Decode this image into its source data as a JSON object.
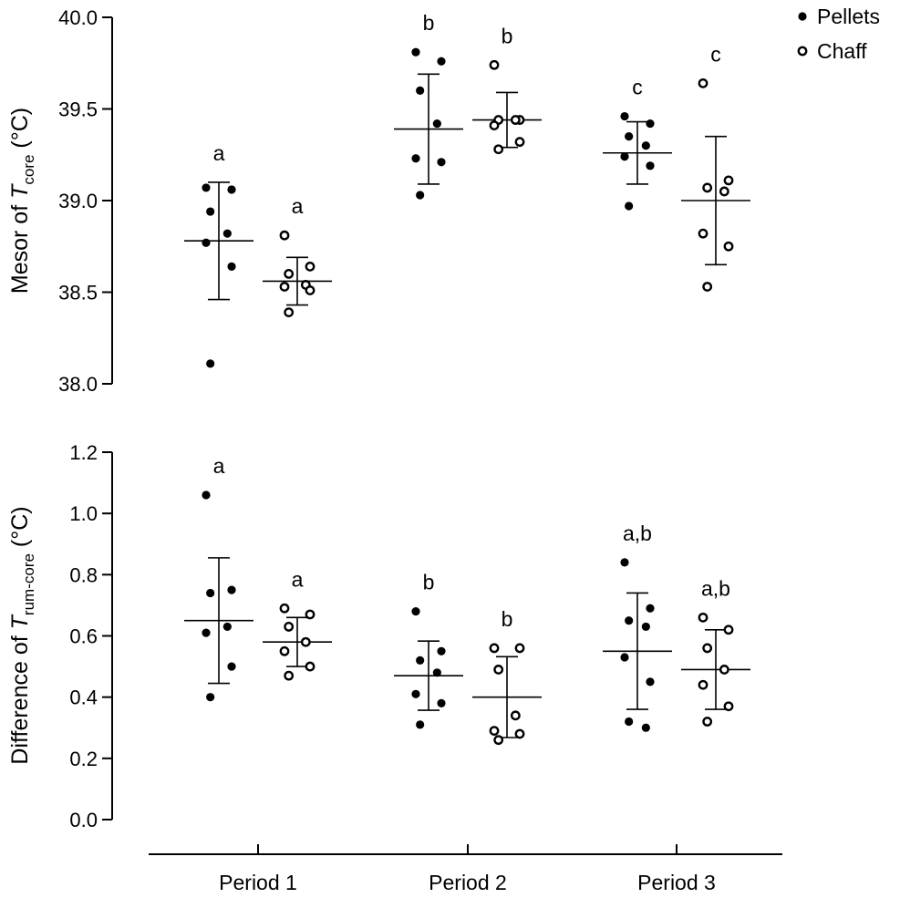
{
  "chart_data": [
    {
      "type": "scatter",
      "panel": "top",
      "ylabel_prefix": "Mesor of ",
      "ylabel_var": "T",
      "ylabel_sub": "core",
      "ylabel_suffix": " (°C)",
      "ylim": [
        38.0,
        40.0
      ],
      "yticks": [
        "38.0",
        "38.5",
        "39.0",
        "39.5",
        "40.0"
      ],
      "categories": [
        "Period 1",
        "Period 2",
        "Period 3"
      ],
      "series": [
        {
          "name": "Pellets",
          "marker": "filled",
          "groups": [
            {
              "points": [
                39.07,
                39.06,
                38.94,
                38.82,
                38.77,
                38.64,
                38.11
              ],
              "mean": 38.78,
              "sd": 0.32,
              "letter": "a"
            },
            {
              "points": [
                39.81,
                39.76,
                39.6,
                39.42,
                39.23,
                39.21,
                39.03
              ],
              "mean": 39.39,
              "sd": 0.3,
              "letter": "b"
            },
            {
              "points": [
                39.46,
                39.42,
                39.35,
                39.3,
                39.24,
                39.19,
                38.97
              ],
              "mean": 39.26,
              "sd": 0.17,
              "letter": "c"
            }
          ]
        },
        {
          "name": "Chaff",
          "marker": "open",
          "groups": [
            {
              "points": [
                38.81,
                38.64,
                38.6,
                38.54,
                38.53,
                38.51,
                38.39
              ],
              "mean": 38.56,
              "sd": 0.13,
              "letter": "a"
            },
            {
              "points": [
                39.74,
                39.44,
                39.44,
                39.44,
                39.41,
                39.32,
                39.28
              ],
              "mean": 39.44,
              "sd": 0.15,
              "letter": "b"
            },
            {
              "points": [
                39.64,
                39.11,
                39.07,
                39.05,
                38.82,
                38.75,
                38.53
              ],
              "mean": 39.0,
              "sd": 0.35,
              "letter": "c"
            }
          ]
        }
      ]
    },
    {
      "type": "scatter",
      "panel": "bottom",
      "ylabel_prefix": "Difference of ",
      "ylabel_var": "T",
      "ylabel_sub": "rum-core",
      "ylabel_suffix": " (°C)",
      "ylim": [
        0.0,
        1.2
      ],
      "yticks": [
        "0.0",
        "0.2",
        "0.4",
        "0.6",
        "0.8",
        "1.0",
        "1.2"
      ],
      "categories": [
        "Period 1",
        "Period 2",
        "Period 3"
      ],
      "series": [
        {
          "name": "Pellets",
          "marker": "filled",
          "groups": [
            {
              "points": [
                1.06,
                0.75,
                0.74,
                0.63,
                0.61,
                0.5,
                0.4
              ],
              "mean": 0.65,
              "sd": 0.205,
              "letter": "a"
            },
            {
              "points": [
                0.68,
                0.55,
                0.52,
                0.48,
                0.41,
                0.38,
                0.31
              ],
              "mean": 0.47,
              "sd": 0.113,
              "letter": "b"
            },
            {
              "points": [
                0.84,
                0.69,
                0.65,
                0.63,
                0.53,
                0.45,
                0.32,
                0.3
              ],
              "mean": 0.55,
              "sd": 0.19,
              "letter": "a,b"
            }
          ]
        },
        {
          "name": "Chaff",
          "marker": "open",
          "groups": [
            {
              "points": [
                0.69,
                0.67,
                0.63,
                0.58,
                0.55,
                0.5,
                0.47
              ],
              "mean": 0.58,
              "sd": 0.08,
              "letter": "a"
            },
            {
              "points": [
                0.56,
                0.56,
                0.49,
                0.34,
                0.29,
                0.28,
                0.26
              ],
              "mean": 0.4,
              "sd": 0.132,
              "letter": "b"
            },
            {
              "points": [
                0.66,
                0.62,
                0.56,
                0.49,
                0.44,
                0.37,
                0.32
              ],
              "mean": 0.49,
              "sd": 0.13,
              "letter": "a,b"
            }
          ]
        }
      ]
    }
  ],
  "legend": {
    "position": "top-right",
    "items": [
      {
        "label": "Pellets",
        "marker": "filled"
      },
      {
        "label": "Chaff",
        "marker": "open"
      }
    ]
  }
}
